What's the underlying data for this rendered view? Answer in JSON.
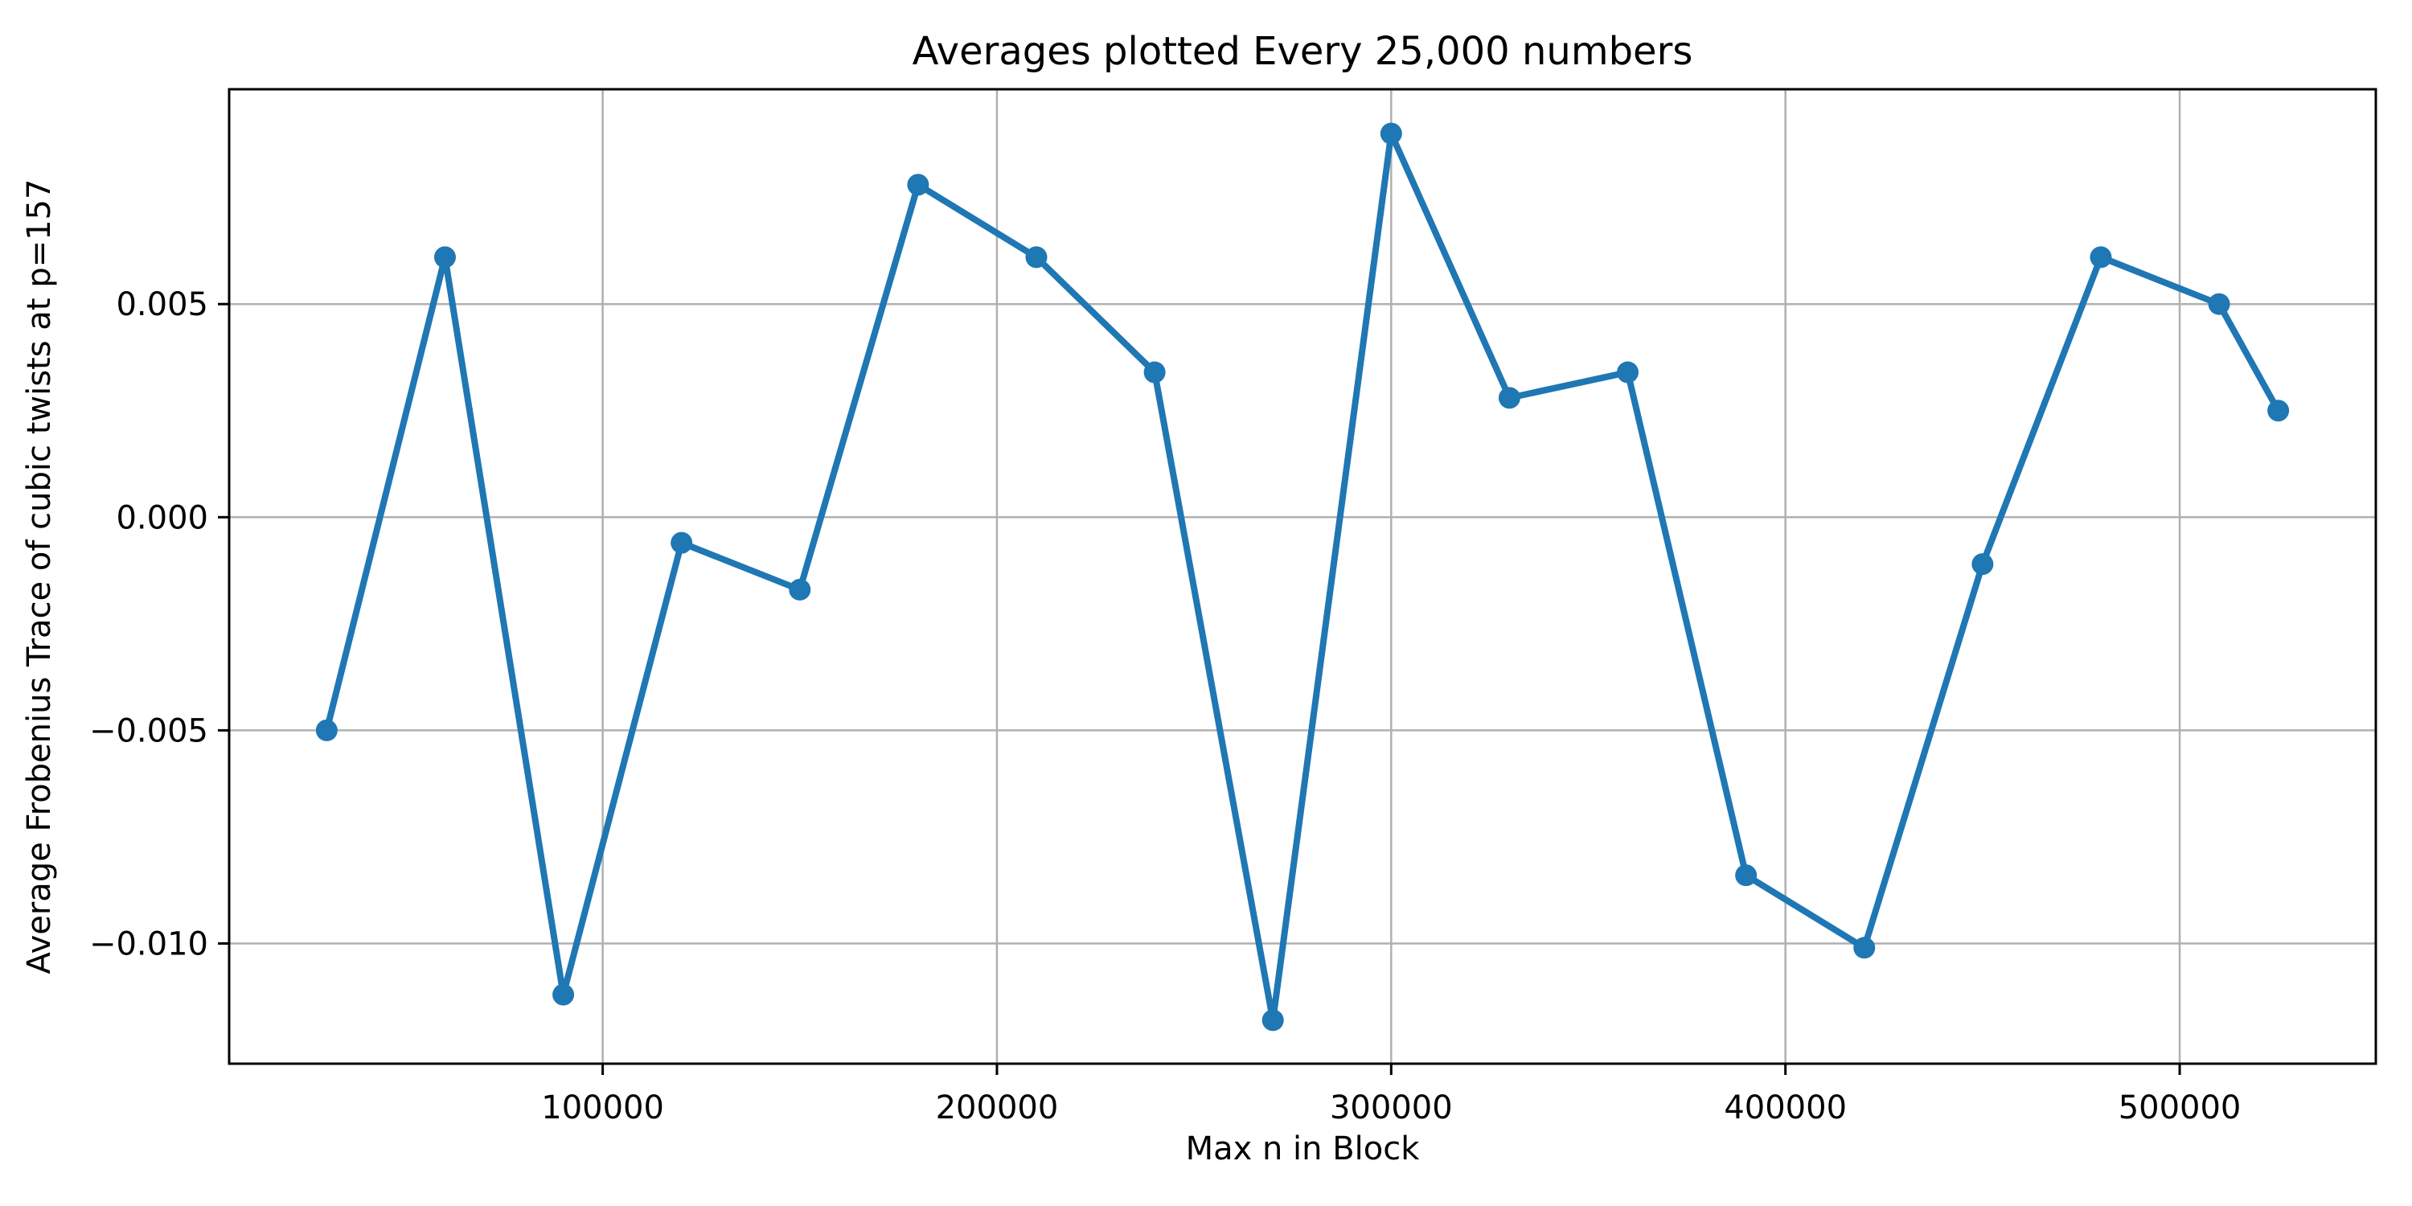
{
  "chart_data": {
    "type": "line",
    "title": "Averages plotted Every 25,000 numbers",
    "xlabel": "Max n in Block",
    "ylabel": "Average Frobenius Trace of cubic twists at p=157",
    "series": [
      {
        "name": "average-frobenius-trace",
        "x": [
          30000,
          60000,
          90000,
          120000,
          150000,
          180000,
          210000,
          240000,
          270000,
          300000,
          330000,
          360000,
          390000,
          420000,
          450000,
          480000,
          510000,
          525000
        ],
        "y": [
          -0.005,
          0.0061,
          -0.0112,
          -0.0006,
          -0.0017,
          0.0078,
          0.0061,
          0.0034,
          -0.0118,
          0.009,
          0.0028,
          0.0034,
          -0.0084,
          -0.0101,
          -0.0011,
          0.0061,
          0.005,
          0.0025
        ]
      }
    ],
    "x_ticks": {
      "values": [
        100000,
        200000,
        300000,
        400000,
        500000
      ],
      "labels": [
        "100000",
        "200000",
        "300000",
        "400000",
        "500000"
      ]
    },
    "y_ticks": {
      "values": [
        0.005,
        0.0,
        -0.005,
        -0.01
      ],
      "labels": [
        "0.005",
        "0.000",
        "−0.005",
        "−0.010"
      ]
    },
    "xlim": [
      5250,
      549750
    ],
    "ylim": [
      -0.01282,
      0.01004
    ],
    "grid": true,
    "legend": "none",
    "line_color": "#1f77b4",
    "marker": "circle",
    "grid_color": "#b0b0b0",
    "spine_color": "#000000",
    "background": "#ffffff"
  }
}
